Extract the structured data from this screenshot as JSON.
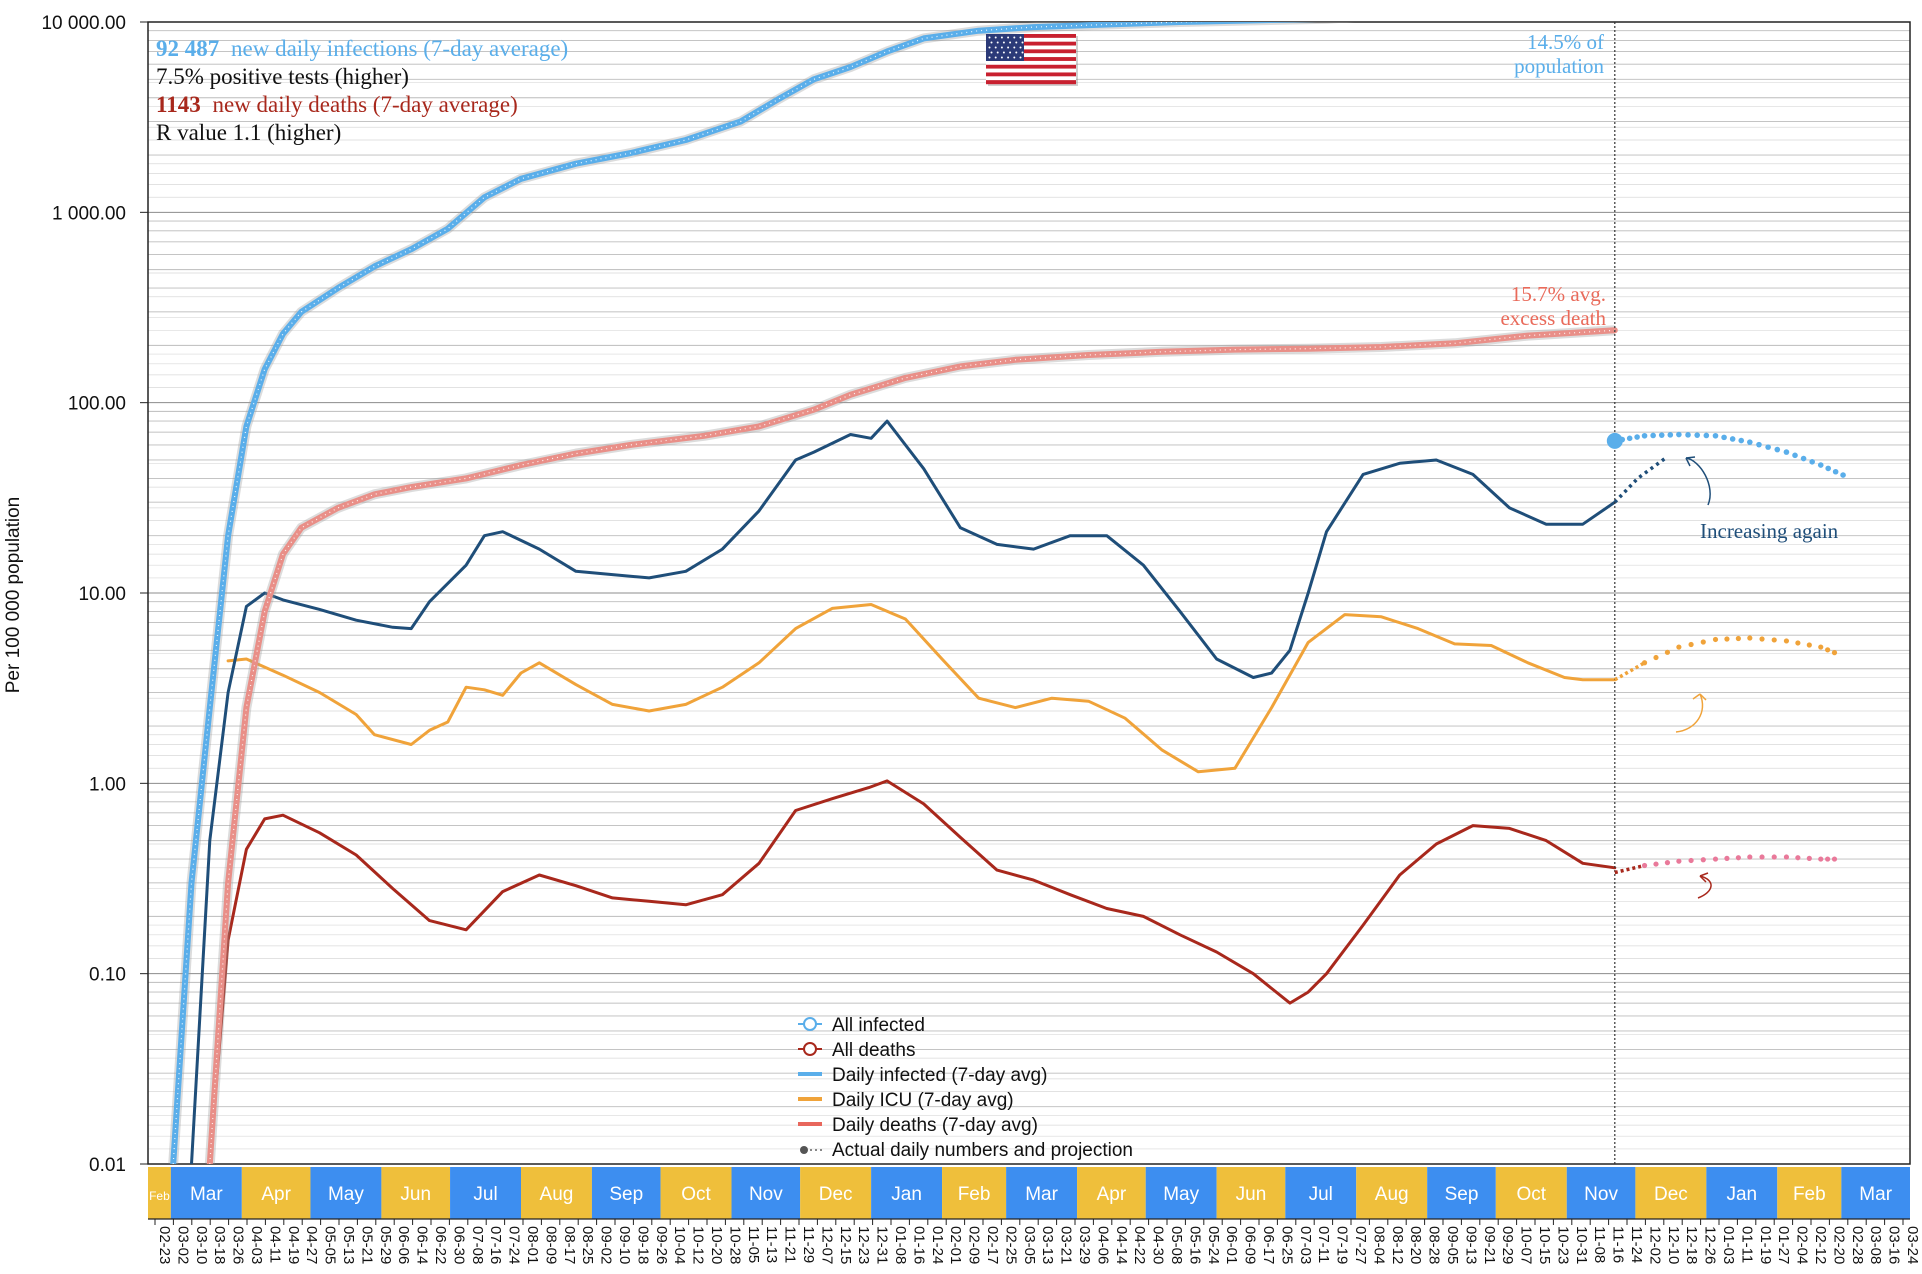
{
  "colors": {
    "infected": "#5aaeea",
    "deaths_cum": "#e98f88",
    "daily_infected": "#1f4e79",
    "icu": "#f0a33a",
    "daily_deaths": "#a8281c",
    "month_blue": "#3d8ef0",
    "month_yellow": "#efbf3b"
  },
  "stats": {
    "infections_value": "92 487",
    "infections_text": "new daily infections (7-day average)",
    "positive_tests": "7.5% positive tests (higher)",
    "deaths_value": "1143",
    "deaths_text": "new daily deaths (7-day average)",
    "r_value": "R value 1.1 (higher)"
  },
  "flag": "us-flag-icon",
  "annotations": {
    "population_line1": "14.5% of",
    "population_line2": "population",
    "excess_line1": "15.7% avg.",
    "excess_line2": "excess death",
    "increasing": "Increasing again"
  },
  "legend": [
    {
      "label": "All infected"
    },
    {
      "label": "All deaths"
    },
    {
      "label": "Daily infected (7-day avg)"
    },
    {
      "label": "Daily ICU (7-day avg)"
    },
    {
      "label": "Daily deaths (7-day avg)"
    },
    {
      "label": "Actual daily numbers and projection"
    }
  ],
  "chart_data": {
    "type": "line",
    "ylabel": "Per 100 000 population",
    "yscale": "log",
    "ylim": [
      0.01,
      10000
    ],
    "y_ticks": [
      "10 000.00",
      "1 000.00",
      "100.00",
      "10.00",
      "1.00",
      "0.10",
      "0.01"
    ],
    "xlim": [
      "2020-02-20",
      "2022-03-31"
    ],
    "today": "2021-11-22",
    "grid": true,
    "legend_position": "bottom-center",
    "months": [
      {
        "label": "Feb",
        "start": "2020-02-20",
        "end": "2020-03-01"
      },
      {
        "label": "Mar",
        "start": "2020-03-01",
        "end": "2020-04-01"
      },
      {
        "label": "Apr",
        "start": "2020-04-01",
        "end": "2020-05-01"
      },
      {
        "label": "May",
        "start": "2020-05-01",
        "end": "2020-06-01"
      },
      {
        "label": "Jun",
        "start": "2020-06-01",
        "end": "2020-07-01"
      },
      {
        "label": "Jul",
        "start": "2020-07-01",
        "end": "2020-08-01"
      },
      {
        "label": "Aug",
        "start": "2020-08-01",
        "end": "2020-09-01"
      },
      {
        "label": "Sep",
        "start": "2020-09-01",
        "end": "2020-10-01"
      },
      {
        "label": "Oct",
        "start": "2020-10-01",
        "end": "2020-11-01"
      },
      {
        "label": "Nov",
        "start": "2020-11-01",
        "end": "2020-12-01"
      },
      {
        "label": "Dec",
        "start": "2020-12-01",
        "end": "2021-01-01"
      },
      {
        "label": "Jan",
        "start": "2021-01-01",
        "end": "2021-02-01"
      },
      {
        "label": "Feb",
        "start": "2021-02-01",
        "end": "2021-03-01"
      },
      {
        "label": "Mar",
        "start": "2021-03-01",
        "end": "2021-04-01"
      },
      {
        "label": "Apr",
        "start": "2021-04-01",
        "end": "2021-05-01"
      },
      {
        "label": "May",
        "start": "2021-05-01",
        "end": "2021-06-01"
      },
      {
        "label": "Jun",
        "start": "2021-06-01",
        "end": "2021-07-01"
      },
      {
        "label": "Jul",
        "start": "2021-07-01",
        "end": "2021-08-01"
      },
      {
        "label": "Aug",
        "start": "2021-08-01",
        "end": "2021-09-01"
      },
      {
        "label": "Sep",
        "start": "2021-09-01",
        "end": "2021-10-01"
      },
      {
        "label": "Oct",
        "start": "2021-10-01",
        "end": "2021-11-01"
      },
      {
        "label": "Nov",
        "start": "2021-11-01",
        "end": "2021-12-01"
      },
      {
        "label": "Dec",
        "start": "2021-12-01",
        "end": "2022-01-01"
      },
      {
        "label": "Jan",
        "start": "2022-01-01",
        "end": "2022-02-01"
      },
      {
        "label": "Feb",
        "start": "2022-02-01",
        "end": "2022-03-01"
      },
      {
        "label": "Mar",
        "start": "2022-03-01",
        "end": "2022-03-31"
      }
    ],
    "x_tick_labels": [
      "02-23",
      "03-02",
      "03-10",
      "03-18",
      "03-26",
      "04-03",
      "04-11",
      "04-19",
      "04-27",
      "05-05",
      "05-13",
      "05-21",
      "05-29",
      "06-06",
      "06-14",
      "06-22",
      "06-30",
      "07-08",
      "07-16",
      "07-24",
      "08-01",
      "08-09",
      "08-17",
      "08-25",
      "09-02",
      "09-10",
      "09-18",
      "09-26",
      "10-04",
      "10-12",
      "10-20",
      "10-28",
      "11-05",
      "11-13",
      "11-21",
      "11-29",
      "12-07",
      "12-15",
      "12-23",
      "12-31",
      "01-08",
      "01-16",
      "01-24",
      "02-01",
      "02-09",
      "02-17",
      "02-25",
      "03-05",
      "03-13",
      "03-21",
      "03-29",
      "04-06",
      "04-14",
      "04-22",
      "04-30",
      "05-08",
      "05-16",
      "05-24",
      "06-01",
      "06-09",
      "06-17",
      "06-25",
      "07-03",
      "07-11",
      "07-19",
      "07-27",
      "08-04",
      "08-12",
      "08-20",
      "08-28",
      "09-05",
      "09-13",
      "09-21",
      "09-29",
      "10-07",
      "10-15",
      "10-23",
      "10-31",
      "11-08",
      "11-16",
      "11-24",
      "12-02",
      "12-10",
      "12-18",
      "12-26",
      "01-03",
      "01-11",
      "01-19",
      "01-27",
      "02-04",
      "02-12",
      "02-20",
      "02-28",
      "03-08",
      "03-16",
      "03-24"
    ],
    "series": [
      {
        "name": "All infected",
        "x": [
          "2020-03-02",
          "2020-03-10",
          "2020-03-18",
          "2020-03-26",
          "2020-04-03",
          "2020-04-11",
          "2020-04-19",
          "2020-04-27",
          "2020-05-13",
          "2020-05-29",
          "2020-06-14",
          "2020-06-30",
          "2020-07-16",
          "2020-08-01",
          "2020-08-25",
          "2020-09-18",
          "2020-10-12",
          "2020-11-05",
          "2020-11-21",
          "2020-12-07",
          "2020-12-23",
          "2021-01-08",
          "2021-01-24",
          "2021-02-17",
          "2021-03-13",
          "2021-04-14",
          "2021-05-16",
          "2021-06-17",
          "2021-07-19",
          "2021-08-20",
          "2021-09-21",
          "2021-10-07"
        ],
        "y": [
          0.01,
          0.3,
          2.5,
          20,
          75,
          150,
          230,
          300,
          400,
          520,
          640,
          820,
          1200,
          1500,
          1800,
          2050,
          2400,
          3000,
          3900,
          5000,
          5800,
          7000,
          8200,
          9000,
          9400,
          9700,
          10000,
          10200,
          10400,
          11000,
          12600,
          13800
        ]
      },
      {
        "name": "All deaths",
        "x": [
          "2020-03-18",
          "2020-03-26",
          "2020-04-03",
          "2020-04-11",
          "2020-04-19",
          "2020-04-27",
          "2020-05-13",
          "2020-05-29",
          "2020-06-14",
          "2020-07-08",
          "2020-08-01",
          "2020-08-25",
          "2020-09-18",
          "2020-10-20",
          "2020-11-13",
          "2020-12-07",
          "2020-12-23",
          "2021-01-16",
          "2021-02-09",
          "2021-03-05",
          "2021-04-06",
          "2021-05-08",
          "2021-06-09",
          "2021-07-11",
          "2021-08-12",
          "2021-09-13",
          "2021-10-15",
          "2021-11-22"
        ],
        "y": [
          0.01,
          0.3,
          2.5,
          8,
          16,
          22,
          28,
          33,
          36,
          40,
          47,
          54,
          60,
          67,
          75,
          92,
          110,
          135,
          155,
          168,
          178,
          185,
          190,
          192,
          196,
          205,
          225,
          240
        ]
      },
      {
        "name": "Daily infected (7-day avg)",
        "x": [
          "2020-03-10",
          "2020-03-18",
          "2020-03-26",
          "2020-04-03",
          "2020-04-11",
          "2020-04-19",
          "2020-05-05",
          "2020-05-21",
          "2020-06-06",
          "2020-06-14",
          "2020-06-22",
          "2020-07-08",
          "2020-07-16",
          "2020-07-24",
          "2020-08-09",
          "2020-08-25",
          "2020-09-10",
          "2020-09-26",
          "2020-10-12",
          "2020-10-28",
          "2020-11-13",
          "2020-11-29",
          "2020-12-07",
          "2020-12-23",
          "2021-01-01",
          "2021-01-08",
          "2021-01-24",
          "2021-02-09",
          "2021-02-25",
          "2021-03-13",
          "2021-03-29",
          "2021-04-14",
          "2021-04-30",
          "2021-05-16",
          "2021-06-01",
          "2021-06-17",
          "2021-06-25",
          "2021-07-03",
          "2021-07-11",
          "2021-07-19",
          "2021-08-04",
          "2021-08-20",
          "2021-09-05",
          "2021-09-21",
          "2021-10-07",
          "2021-10-23",
          "2021-11-08",
          "2021-11-22"
        ],
        "y": [
          0.01,
          0.5,
          3,
          8.5,
          10,
          9.2,
          8.2,
          7.2,
          6.6,
          6.5,
          9,
          14,
          20,
          21,
          17,
          13,
          12.5,
          12,
          13,
          17,
          27,
          50,
          55,
          68,
          65,
          80,
          45,
          22,
          18,
          17,
          20,
          20,
          14,
          8,
          4.5,
          3.6,
          3.8,
          5,
          10,
          21,
          42,
          48,
          50,
          42,
          28,
          23,
          23,
          30
        ]
      },
      {
        "name": "Daily ICU (7-day avg)",
        "x": [
          "2020-03-26",
          "2020-04-03",
          "2020-04-19",
          "2020-05-05",
          "2020-05-21",
          "2020-05-29",
          "2020-06-14",
          "2020-06-22",
          "2020-06-30",
          "2020-07-08",
          "2020-07-16",
          "2020-07-24",
          "2020-08-01",
          "2020-08-09",
          "2020-08-25",
          "2020-09-10",
          "2020-09-26",
          "2020-10-12",
          "2020-10-28",
          "2020-11-13",
          "2020-11-29",
          "2020-12-15",
          "2021-01-01",
          "2021-01-16",
          "2021-02-01",
          "2021-02-17",
          "2021-03-05",
          "2021-03-21",
          "2021-04-06",
          "2021-04-22",
          "2021-05-08",
          "2021-05-24",
          "2021-06-09",
          "2021-06-25",
          "2021-07-11",
          "2021-07-27",
          "2021-08-12",
          "2021-08-28",
          "2021-09-13",
          "2021-09-29",
          "2021-10-15",
          "2021-10-31",
          "2021-11-08",
          "2021-11-22"
        ],
        "y": [
          4.4,
          4.5,
          3.7,
          3,
          2.3,
          1.8,
          1.6,
          1.9,
          2.1,
          3.2,
          3.1,
          2.9,
          3.8,
          4.3,
          3.3,
          2.6,
          2.4,
          2.6,
          3.2,
          4.3,
          6.5,
          8.3,
          8.7,
          7.3,
          4.5,
          2.8,
          2.5,
          2.8,
          2.7,
          2.2,
          1.5,
          1.15,
          1.2,
          2.5,
          5.5,
          7.7,
          7.5,
          6.5,
          5.4,
          5.3,
          4.3,
          3.6,
          3.5,
          3.5
        ]
      },
      {
        "name": "Daily deaths (7-day avg)",
        "x": [
          "2020-03-18",
          "2020-03-26",
          "2020-04-03",
          "2020-04-11",
          "2020-04-19",
          "2020-05-05",
          "2020-05-21",
          "2020-06-06",
          "2020-06-22",
          "2020-07-08",
          "2020-07-24",
          "2020-08-09",
          "2020-08-25",
          "2020-09-10",
          "2020-09-26",
          "2020-10-12",
          "2020-10-28",
          "2020-11-13",
          "2020-11-29",
          "2020-12-15",
          "2020-12-31",
          "2021-01-08",
          "2021-01-24",
          "2021-02-09",
          "2021-02-25",
          "2021-03-13",
          "2021-03-29",
          "2021-04-14",
          "2021-04-30",
          "2021-05-16",
          "2021-06-01",
          "2021-06-17",
          "2021-07-03",
          "2021-07-11",
          "2021-07-19",
          "2021-08-04",
          "2021-08-20",
          "2021-09-05",
          "2021-09-21",
          "2021-10-07",
          "2021-10-23",
          "2021-11-08",
          "2021-11-22"
        ],
        "y": [
          0.01,
          0.15,
          0.45,
          0.65,
          0.68,
          0.55,
          0.42,
          0.28,
          0.19,
          0.17,
          0.27,
          0.33,
          0.29,
          0.25,
          0.24,
          0.23,
          0.26,
          0.38,
          0.72,
          0.83,
          0.95,
          1.03,
          0.78,
          0.52,
          0.35,
          0.31,
          0.26,
          0.22,
          0.2,
          0.16,
          0.13,
          0.1,
          0.07,
          0.08,
          0.1,
          0.18,
          0.33,
          0.48,
          0.6,
          0.58,
          0.5,
          0.38,
          0.36
        ]
      },
      {
        "name": "Actual daily numbers and projection",
        "projections": [
          {
            "series": "All infected",
            "x": [
              "2021-11-22",
              "2021-12-05",
              "2021-12-20",
              "2022-01-05",
              "2022-01-20",
              "2022-02-05",
              "2022-02-20",
              "2022-03-05"
            ],
            "y": [
              63,
              67,
              68,
              67,
              62,
              55,
              47,
              40
            ]
          },
          {
            "series": "Daily infected (7-day avg)",
            "x": [
              "2021-11-22",
              "2021-12-02",
              "2021-12-15"
            ],
            "y": [
              30,
              40,
              52
            ]
          },
          {
            "series": "Daily ICU (7-day avg)",
            "x": [
              "2021-11-22",
              "2021-12-05",
              "2021-12-20",
              "2022-01-05",
              "2022-01-20",
              "2022-02-05",
              "2022-02-20",
              "2022-03-01"
            ],
            "y": [
              3.5,
              4.3,
              5.2,
              5.7,
              5.8,
              5.6,
              5.2,
              4.7
            ]
          },
          {
            "series": "Daily deaths (7-day avg)",
            "x": [
              "2021-11-22",
              "2021-12-05",
              "2021-12-20",
              "2022-01-05",
              "2022-01-20",
              "2022-02-05",
              "2022-02-20",
              "2022-03-01"
            ],
            "y": [
              0.34,
              0.37,
              0.39,
              0.4,
              0.41,
              0.41,
              0.4,
              0.4
            ]
          }
        ]
      }
    ]
  }
}
